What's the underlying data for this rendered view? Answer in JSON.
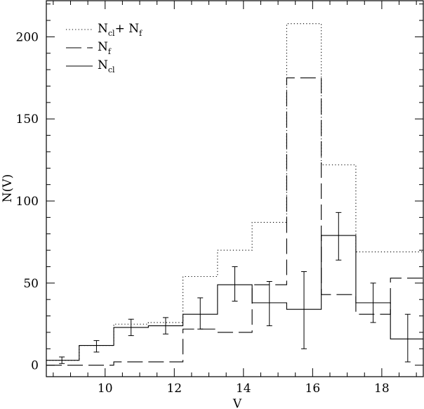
{
  "chart_data": {
    "type": "histogram",
    "xlabel": "V",
    "ylabel": "N(V)",
    "xlim": [
      8.3,
      19.2
    ],
    "ylim": [
      -7,
      222
    ],
    "x_ticks": [
      10,
      12,
      14,
      16,
      18
    ],
    "x_tick_labels": [
      "10",
      "12",
      "14",
      "16",
      "18"
    ],
    "y_ticks": [
      0,
      50,
      100,
      150,
      200
    ],
    "y_tick_labels": [
      "0",
      "50",
      "100",
      "150",
      "200"
    ],
    "bin_edges": [
      8.3,
      9.25,
      10.25,
      11.25,
      12.25,
      13.25,
      14.25,
      15.25,
      16.25,
      17.25,
      18.25,
      19.2
    ],
    "series": [
      {
        "name": "N_cl+ N_f",
        "legend_main": [
          "N",
          "+  N"
        ],
        "legend_sub": [
          "cl",
          "f"
        ],
        "style": "dotted",
        "values": [
          3,
          12,
          25,
          26,
          54,
          70,
          87,
          208,
          122,
          69,
          69
        ]
      },
      {
        "name": "N_f",
        "legend_main": [
          "N"
        ],
        "legend_sub": [
          "f"
        ],
        "style": "dashed",
        "values": [
          0,
          0,
          2,
          2,
          22,
          20,
          49,
          175,
          43,
          31,
          53
        ]
      },
      {
        "name": "N_cl",
        "legend_main": [
          "N"
        ],
        "legend_sub": [
          "cl"
        ],
        "style": "solid",
        "values": [
          3,
          12,
          23,
          24,
          31,
          49,
          38,
          34,
          79,
          38,
          16
        ],
        "errors": [
          {
            "x": 8.75,
            "y": 3,
            "lo": 1,
            "hi": 5
          },
          {
            "x": 9.75,
            "y": 12,
            "lo": 8,
            "hi": 15
          },
          {
            "x": 10.75,
            "y": 23,
            "lo": 18,
            "hi": 28
          },
          {
            "x": 11.75,
            "y": 24,
            "lo": 19,
            "hi": 29
          },
          {
            "x": 12.75,
            "y": 31,
            "lo": 22,
            "hi": 41
          },
          {
            "x": 13.75,
            "y": 49,
            "lo": 39,
            "hi": 60
          },
          {
            "x": 14.75,
            "y": 38,
            "lo": 24,
            "hi": 51
          },
          {
            "x": 15.75,
            "y": 34,
            "lo": 10,
            "hi": 57
          },
          {
            "x": 16.75,
            "y": 79,
            "lo": 64,
            "hi": 93
          },
          {
            "x": 17.75,
            "y": 38,
            "lo": 26,
            "hi": 50
          },
          {
            "x": 18.75,
            "y": 16,
            "lo": 2,
            "hi": 31
          }
        ]
      }
    ]
  }
}
